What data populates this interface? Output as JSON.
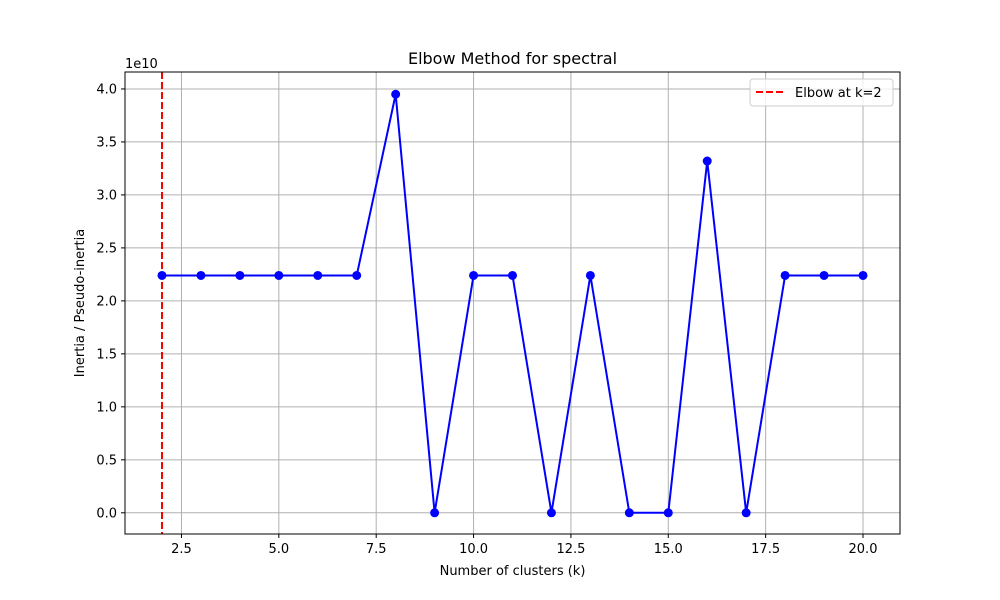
{
  "chart_data": {
    "type": "line",
    "title": "Elbow Method for spectral",
    "xlabel": "Number of clusters (k)",
    "ylabel": "Inertia / Pseudo-inertia",
    "y_scale_label": "1e10",
    "xlim": [
      1.05,
      20.95
    ],
    "ylim": [
      -0.2,
      4.16
    ],
    "x_ticks": [
      2.5,
      5.0,
      7.5,
      10.0,
      12.5,
      15.0,
      17.5,
      20.0
    ],
    "x_tick_labels": [
      "2.5",
      "5.0",
      "7.5",
      "10.0",
      "12.5",
      "15.0",
      "17.5",
      "20.0"
    ],
    "y_ticks": [
      0.0,
      0.5,
      1.0,
      1.5,
      2.0,
      2.5,
      3.0,
      3.5,
      4.0
    ],
    "y_tick_labels": [
      "0.0",
      "0.5",
      "1.0",
      "1.5",
      "2.0",
      "2.5",
      "3.0",
      "3.5",
      "4.0"
    ],
    "grid": true,
    "legend_position": "top-right",
    "series": [
      {
        "color": "#0000ff",
        "marker": "circle",
        "x": [
          2,
          3,
          4,
          5,
          6,
          7,
          8,
          9,
          10,
          11,
          12,
          13,
          14,
          15,
          16,
          17,
          18,
          19,
          20
        ],
        "y": [
          2.24,
          2.24,
          2.24,
          2.24,
          2.24,
          2.24,
          3.95,
          0.0,
          2.24,
          2.24,
          0.0,
          2.24,
          0.0,
          0.0,
          3.32,
          0.0,
          2.24,
          2.24,
          2.24
        ]
      }
    ],
    "reference_line": {
      "orientation": "vertical",
      "x": 2,
      "color": "#ff0000",
      "style": "dashed",
      "label": "Elbow at k=2"
    }
  }
}
